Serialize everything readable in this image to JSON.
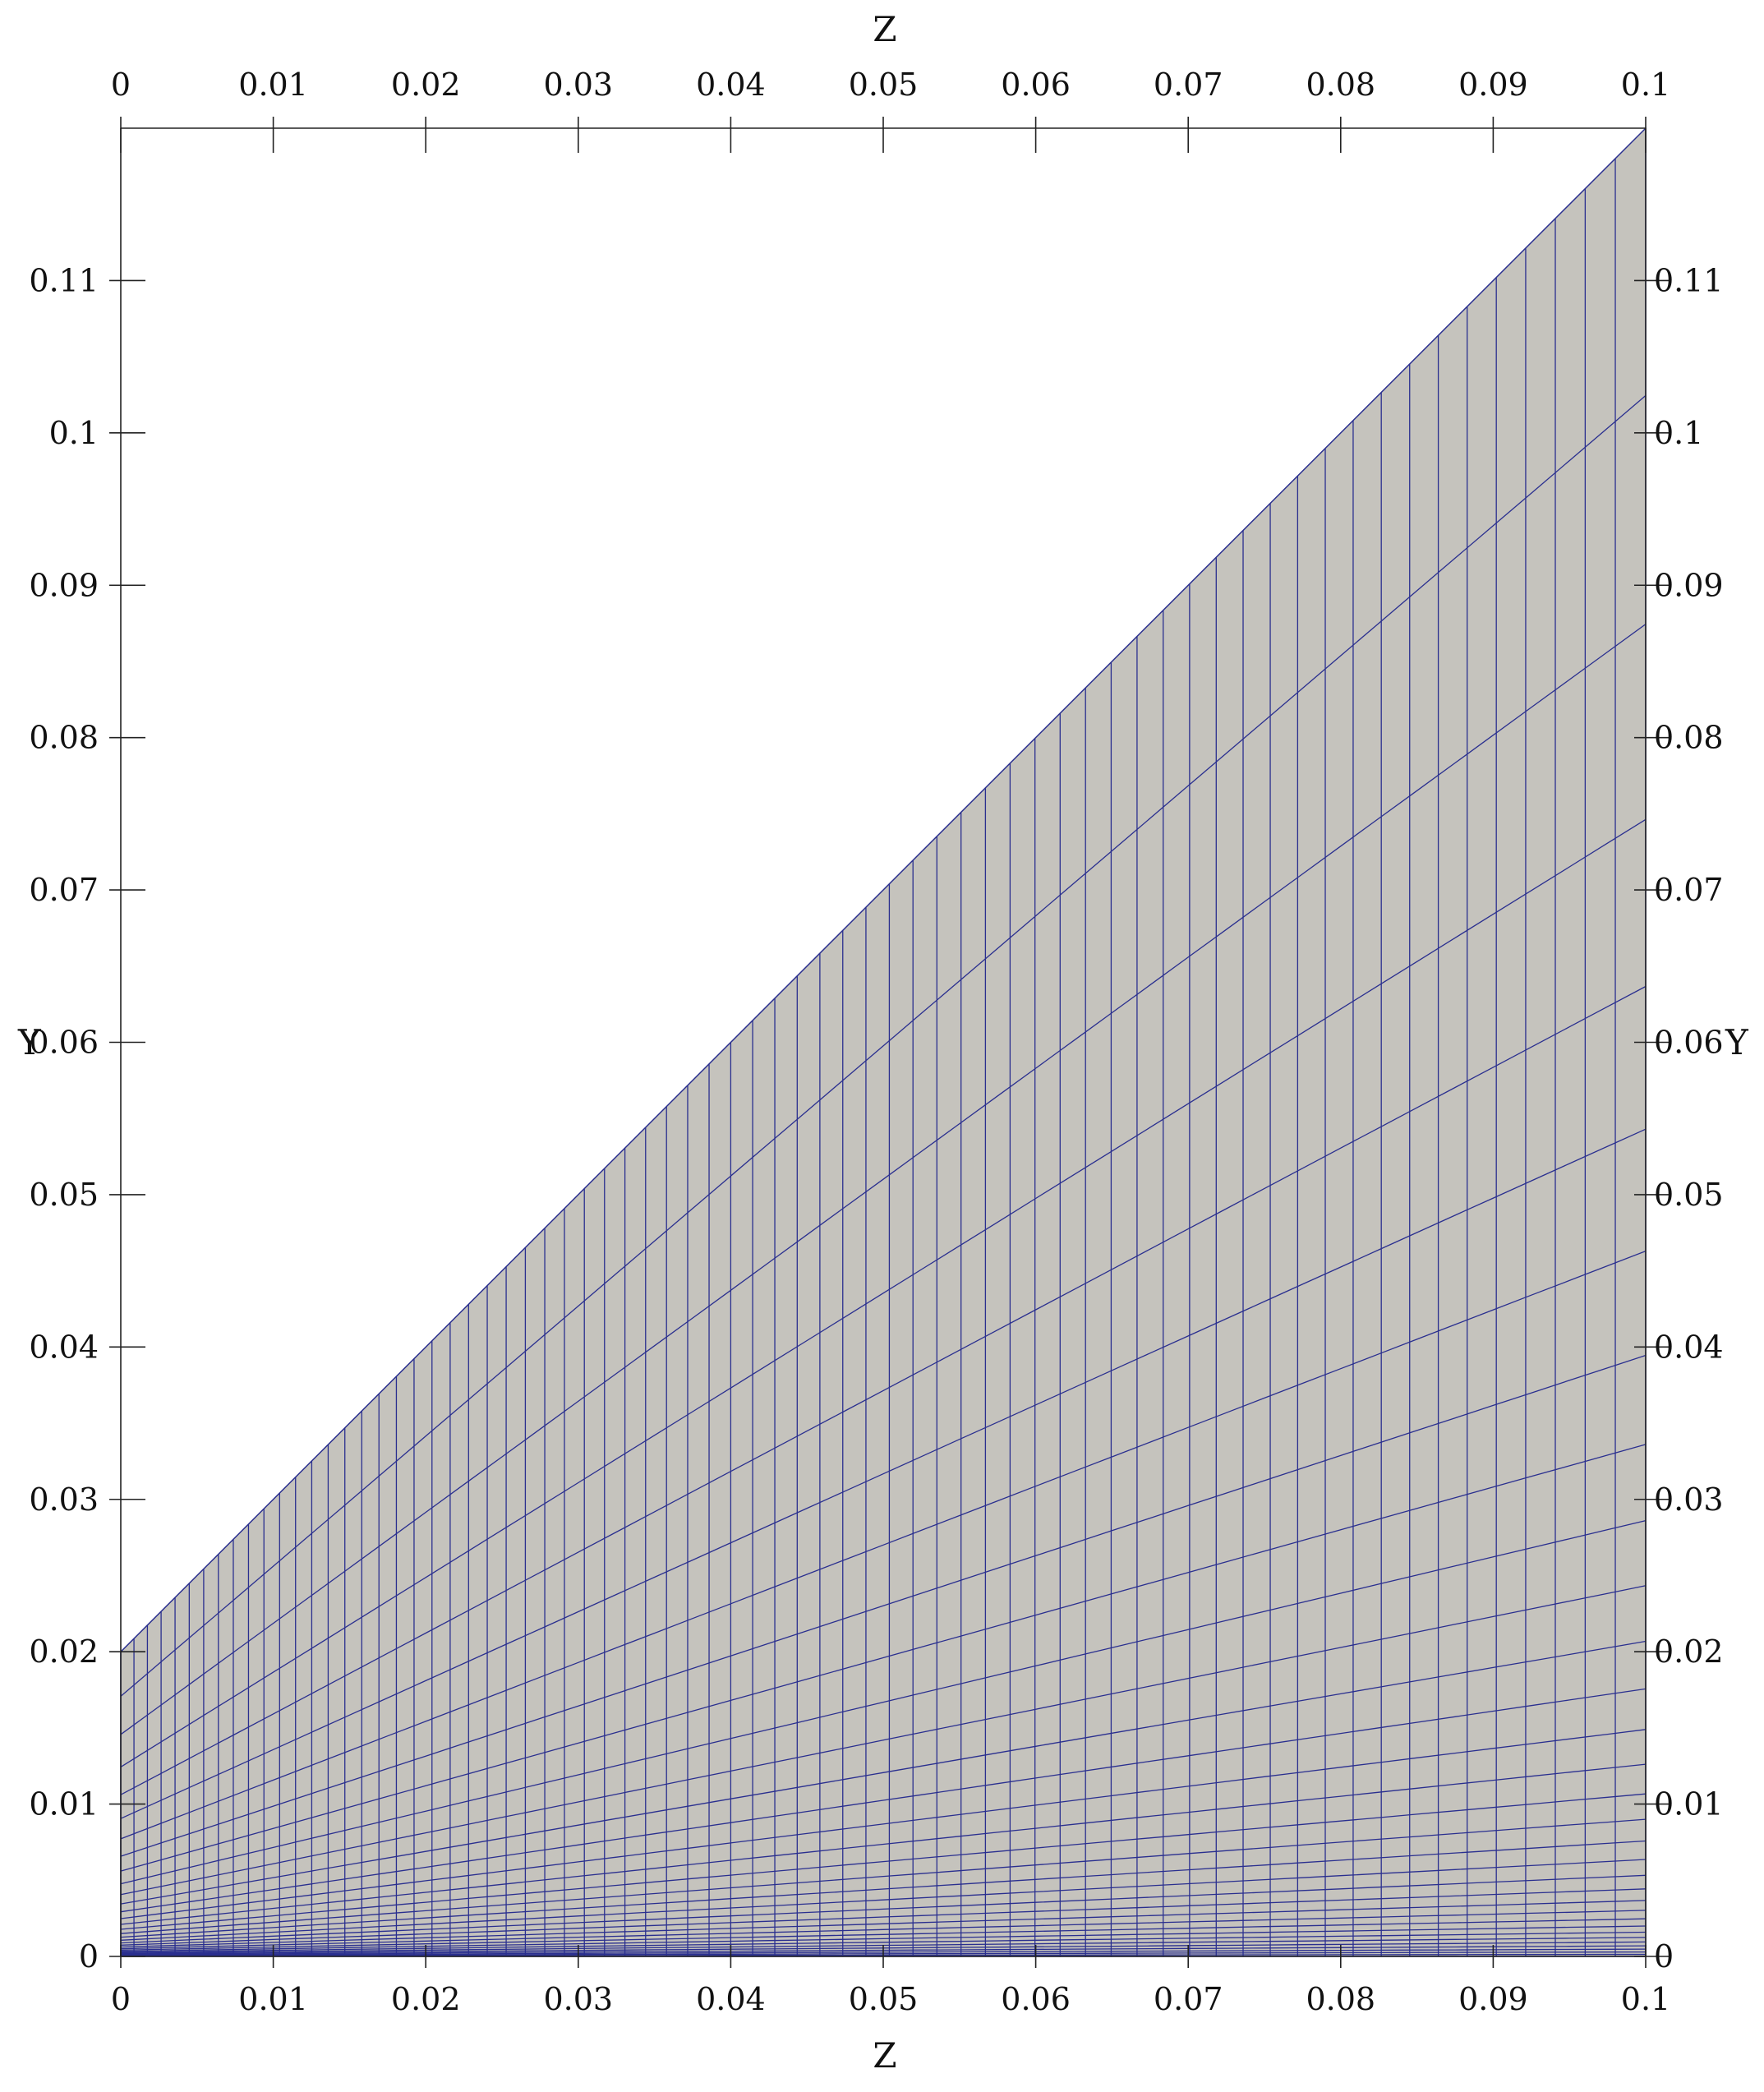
{
  "axes": {
    "x_title": "Z",
    "y_title": "Y",
    "x_ticks": [
      "0",
      "0.01",
      "0.02",
      "0.03",
      "0.04",
      "0.05",
      "0.06",
      "0.07",
      "0.08",
      "0.09",
      "0.1"
    ],
    "y_ticks": [
      "0",
      "0.01",
      "0.02",
      "0.03",
      "0.04",
      "0.05",
      "0.06",
      "0.07",
      "0.08",
      "0.09",
      "0.1",
      "0.11"
    ],
    "x_range": [
      0,
      0.1
    ],
    "y_range": [
      0,
      0.12
    ]
  },
  "mesh": {
    "upper_boundary_start": [
      0,
      0.02
    ],
    "upper_boundary_end": [
      0,
      0.12
    ],
    "fill_color": "#c5c3bd",
    "line_color": "#2a2f8f",
    "columns": 70,
    "rows": 32
  }
}
